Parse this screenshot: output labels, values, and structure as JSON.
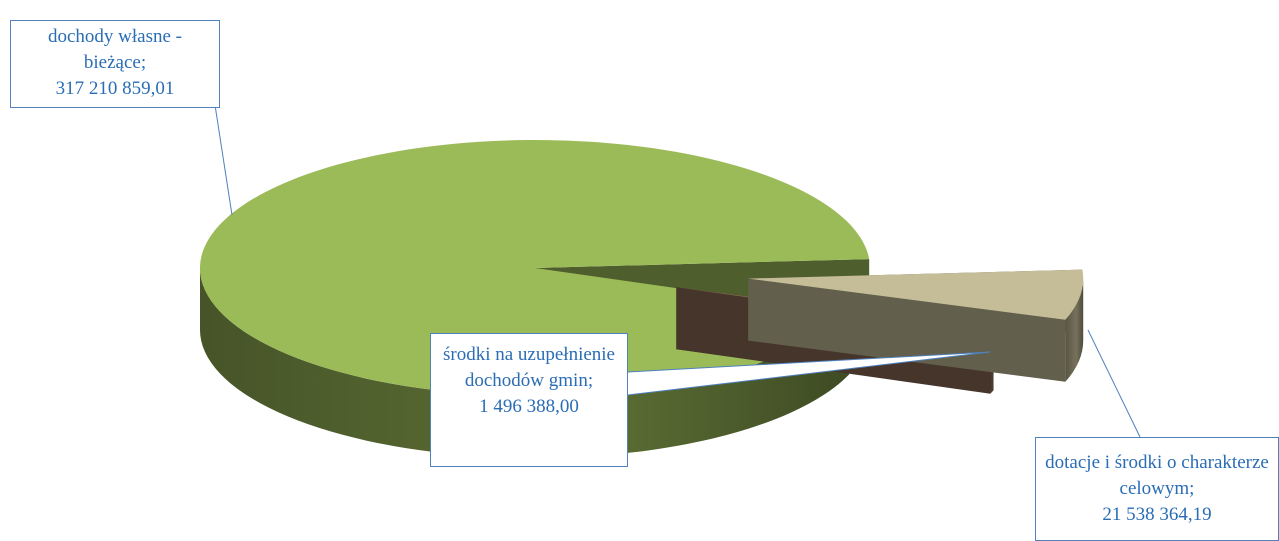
{
  "chart_data": {
    "type": "pie3d",
    "categories": [
      "dochody własne - bieżące;",
      "środki na uzupełnienie dochodów gmin;",
      "dotacje i środki o charakterze celowym;"
    ],
    "values": [
      317210859.01,
      1496388.0,
      21538364.19
    ],
    "value_labels": [
      "317 210 859,01",
      "1 496 388,00",
      "21 538 364,19"
    ],
    "colors": [
      "#9bbb59",
      "#8a6a55",
      "#c4bd97"
    ]
  }
}
